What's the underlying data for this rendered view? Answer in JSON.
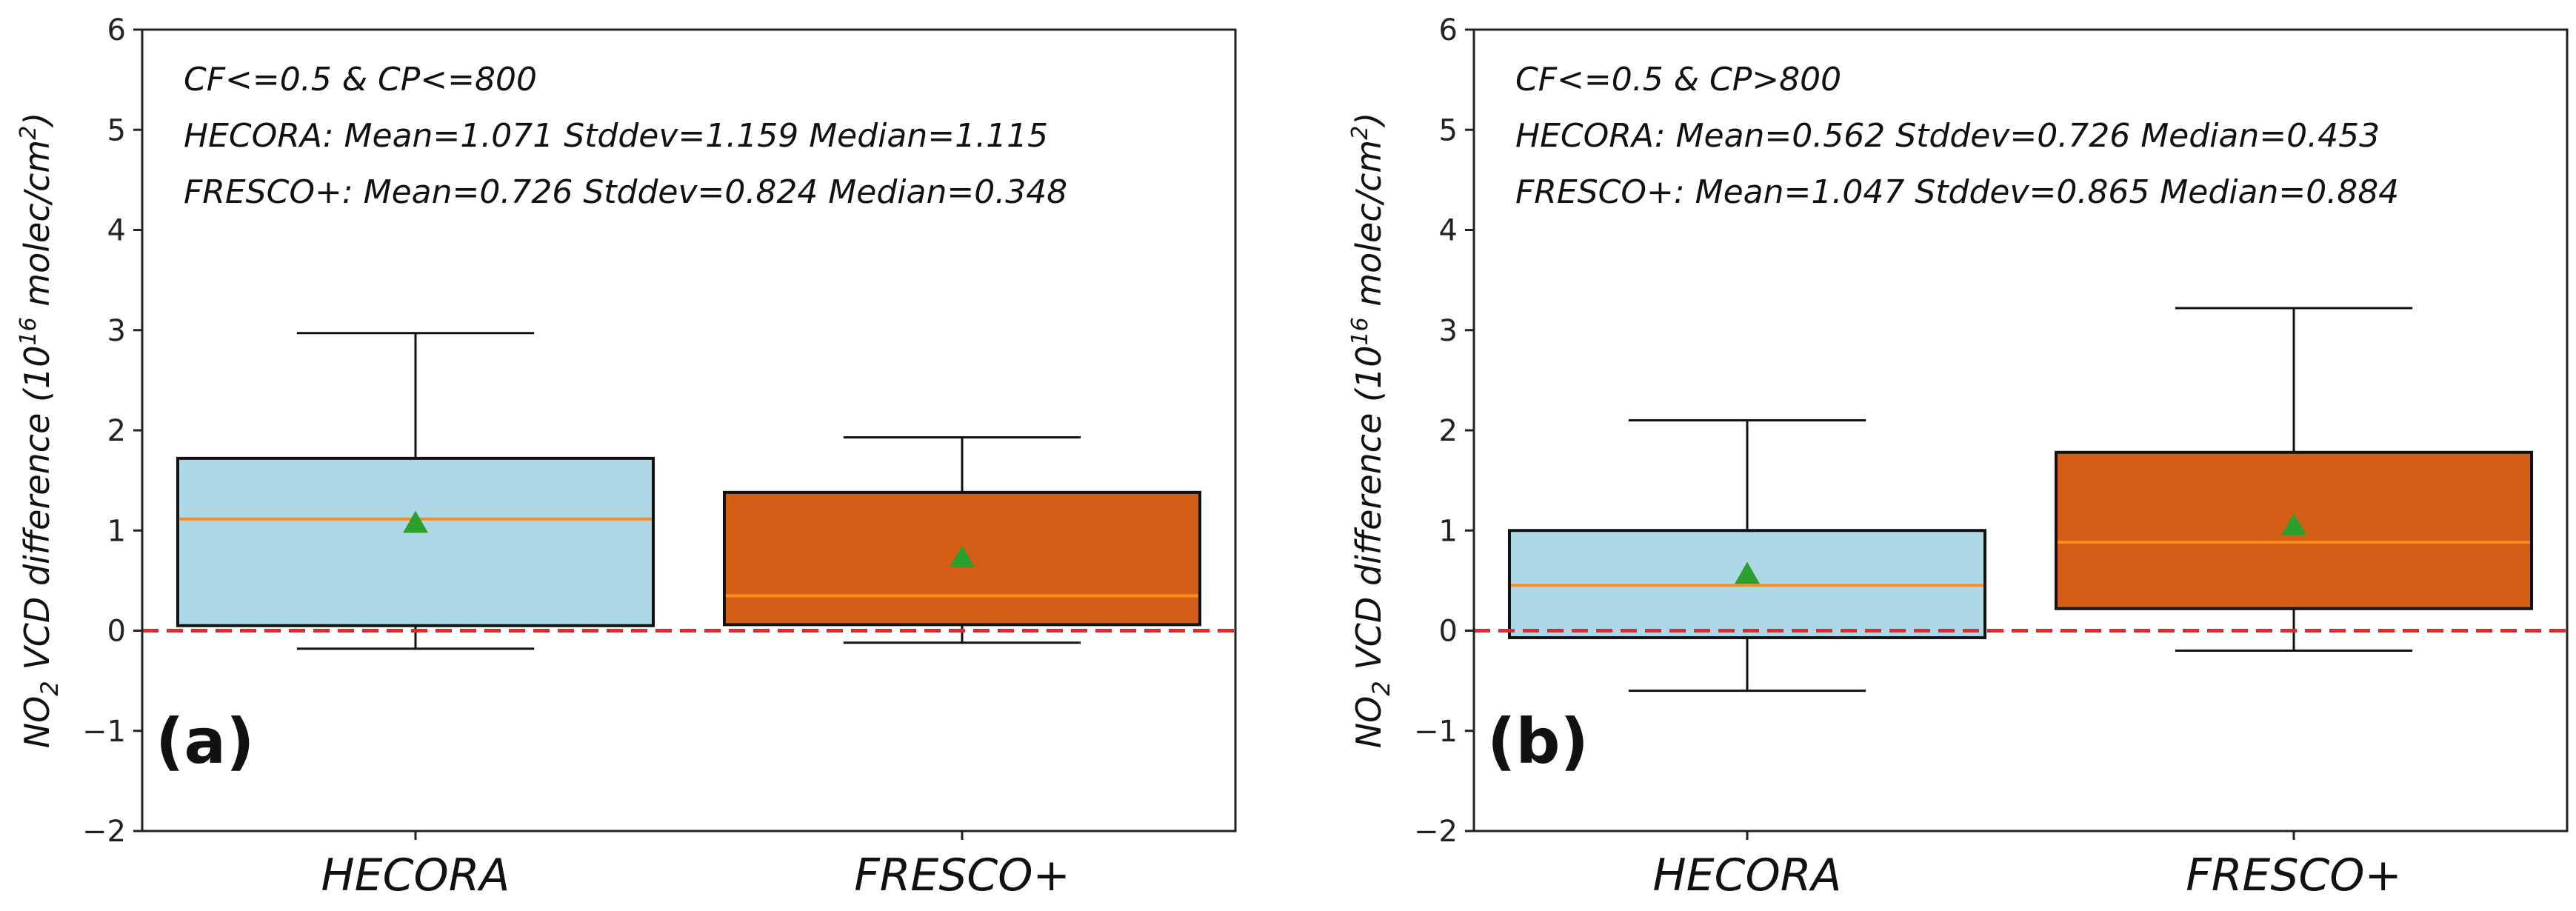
{
  "chart_data": [
    {
      "type": "box",
      "panel_label": "(a)",
      "condition": "CF<=0.5 & CP<=800",
      "ylabel": "NO2 VCD difference (10^16 molec/cm^2)",
      "ylabel_parts": {
        "no": "NO",
        "sub2": "2",
        "mid": " VCD difference (10",
        "exp16": "16",
        "unit": " molec/cm",
        "exp2": "2",
        "close": ")"
      },
      "ylim": [
        -2,
        6
      ],
      "yticks": [
        -2,
        -1,
        0,
        1,
        2,
        3,
        4,
        5,
        6
      ],
      "yticklabels": [
        "−2",
        "−1",
        "0",
        "1",
        "2",
        "3",
        "4",
        "5",
        "6"
      ],
      "reference_line": 0,
      "stats_text": [
        "HECORA:  Mean=1.071  Stddev=1.159  Median=1.115",
        "FRESCO+: Mean=0.726  Stddev=0.824 Median=0.348"
      ],
      "categories": [
        "HECORA",
        "FRESCO+"
      ],
      "boxes": [
        {
          "name": "HECORA",
          "whisker_low": -0.18,
          "q1": 0.05,
          "median": 1.115,
          "q3": 1.72,
          "whisker_high": 2.97,
          "mean": 1.071,
          "color": "#add8e6"
        },
        {
          "name": "FRESCO+",
          "whisker_low": -0.12,
          "q1": 0.06,
          "median": 0.348,
          "q3": 1.38,
          "whisker_high": 1.93,
          "mean": 0.726,
          "color": "#d35f17"
        }
      ]
    },
    {
      "type": "box",
      "panel_label": "(b)",
      "condition": "CF<=0.5 & CP>800",
      "ylabel": "NO2 VCD difference (10^16 molec/cm^2)",
      "ylabel_parts": {
        "no": "NO",
        "sub2": "2",
        "mid": " VCD difference (10",
        "exp16": "16",
        "unit": " molec/cm",
        "exp2": "2",
        "close": ")"
      },
      "ylim": [
        -2,
        6
      ],
      "yticks": [
        -2,
        -1,
        0,
        1,
        2,
        3,
        4,
        5,
        6
      ],
      "yticklabels": [
        "−2",
        "−1",
        "0",
        "1",
        "2",
        "3",
        "4",
        "5",
        "6"
      ],
      "reference_line": 0,
      "stats_text": [
        "HECORA:  Mean=0.562  Stddev=0.726  Median=0.453",
        "FRESCO+: Mean=1.047  Stddev=0.865 Median=0.884"
      ],
      "categories": [
        "HECORA",
        "FRESCO+"
      ],
      "boxes": [
        {
          "name": "HECORA",
          "whisker_low": -0.6,
          "q1": -0.07,
          "median": 0.453,
          "q3": 1.0,
          "whisker_high": 2.1,
          "mean": 0.562,
          "color": "#add8e6"
        },
        {
          "name": "FRESCO+",
          "whisker_low": -0.2,
          "q1": 0.22,
          "median": 0.884,
          "q3": 1.78,
          "whisker_high": 3.22,
          "mean": 1.047,
          "color": "#d35f17"
        }
      ]
    }
  ],
  "style": {
    "median_color": "#ff8c1a",
    "mean_color": "#2ca02c",
    "ref_line_color": "#e8262a",
    "box_edge": "#111111"
  }
}
